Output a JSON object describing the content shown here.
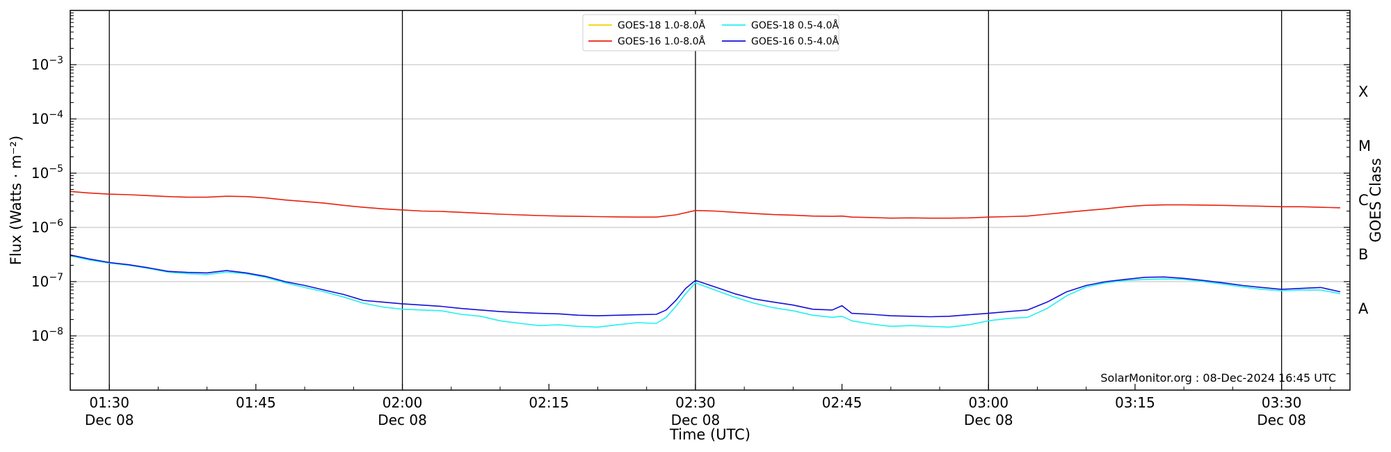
{
  "chart_data": {
    "type": "line",
    "title": "",
    "xlabel": "Time (UTC)",
    "ylabel": "Flux (Watts · m⁻²)",
    "right_label": "GOES Class",
    "yscale": "log",
    "ylim": [
      1e-09,
      0.01
    ],
    "xlim": [
      "01:26",
      "03:37"
    ],
    "grid": "horizontal",
    "legend_position": "top-center",
    "credit": "SolarMonitor.org : 08-Dec-2024 16:45 UTC",
    "x_ticks": [
      {
        "time": "01:30",
        "label": "01:30",
        "date": "Dec 08",
        "vline": true
      },
      {
        "time": "01:45",
        "label": "01:45",
        "date": "",
        "vline": false
      },
      {
        "time": "02:00",
        "label": "02:00",
        "date": "Dec 08",
        "vline": true
      },
      {
        "time": "02:15",
        "label": "02:15",
        "date": "",
        "vline": false
      },
      {
        "time": "02:30",
        "label": "02:30",
        "date": "Dec 08",
        "vline": true
      },
      {
        "time": "02:45",
        "label": "02:45",
        "date": "",
        "vline": false
      },
      {
        "time": "03:00",
        "label": "03:00",
        "date": "Dec 08",
        "vline": true
      },
      {
        "time": "03:15",
        "label": "03:15",
        "date": "",
        "vline": false
      },
      {
        "time": "03:30",
        "label": "03:30",
        "date": "Dec 08",
        "vline": true
      }
    ],
    "y_ticks": [
      {
        "value": 1e-08,
        "base": "10",
        "exp": "−8"
      },
      {
        "value": 1e-07,
        "base": "10",
        "exp": "−7"
      },
      {
        "value": 1e-06,
        "base": "10",
        "exp": "−6"
      },
      {
        "value": 1e-05,
        "base": "10",
        "exp": "−5"
      },
      {
        "value": 0.0001,
        "base": "10",
        "exp": "−4"
      },
      {
        "value": 0.001,
        "base": "10",
        "exp": "−3"
      }
    ],
    "goes_classes": [
      {
        "label": "A",
        "value": 3.16e-08
      },
      {
        "label": "B",
        "value": 3.16e-07
      },
      {
        "label": "C",
        "value": 3.16e-06
      },
      {
        "label": "M",
        "value": 3.16e-05
      },
      {
        "label": "X",
        "value": 0.000316
      }
    ],
    "series": [
      {
        "name": "GOES-18 1.0-8.0Å",
        "color": "#f2d300",
        "points": []
      },
      {
        "name": "GOES-16 1.0-8.0Å",
        "color": "#e8220c",
        "points": [
          [
            "01:26",
            4.6e-06
          ],
          [
            "01:28",
            4.3e-06
          ],
          [
            "01:30",
            4.1e-06
          ],
          [
            "01:32",
            4e-06
          ],
          [
            "01:34",
            3.85e-06
          ],
          [
            "01:36",
            3.7e-06
          ],
          [
            "01:38",
            3.6e-06
          ],
          [
            "01:40",
            3.6e-06
          ],
          [
            "01:42",
            3.75e-06
          ],
          [
            "01:44",
            3.7e-06
          ],
          [
            "01:46",
            3.5e-06
          ],
          [
            "01:48",
            3.2e-06
          ],
          [
            "01:50",
            3e-06
          ],
          [
            "01:52",
            2.8e-06
          ],
          [
            "01:54",
            2.55e-06
          ],
          [
            "01:56",
            2.35e-06
          ],
          [
            "01:58",
            2.2e-06
          ],
          [
            "02:00",
            2.1e-06
          ],
          [
            "02:02",
            2e-06
          ],
          [
            "02:04",
            1.97e-06
          ],
          [
            "02:06",
            1.9e-06
          ],
          [
            "02:08",
            1.82e-06
          ],
          [
            "02:10",
            1.75e-06
          ],
          [
            "02:12",
            1.7e-06
          ],
          [
            "02:14",
            1.65e-06
          ],
          [
            "02:16",
            1.62e-06
          ],
          [
            "02:18",
            1.6e-06
          ],
          [
            "02:20",
            1.58e-06
          ],
          [
            "02:22",
            1.56e-06
          ],
          [
            "02:24",
            1.55e-06
          ],
          [
            "02:26",
            1.55e-06
          ],
          [
            "02:28",
            1.7e-06
          ],
          [
            "02:30",
            2.05e-06
          ],
          [
            "02:32",
            2e-06
          ],
          [
            "02:34",
            1.9e-06
          ],
          [
            "02:36",
            1.8e-06
          ],
          [
            "02:38",
            1.72e-06
          ],
          [
            "02:40",
            1.68e-06
          ],
          [
            "02:42",
            1.62e-06
          ],
          [
            "02:44",
            1.6e-06
          ],
          [
            "02:45",
            1.62e-06
          ],
          [
            "02:46",
            1.55e-06
          ],
          [
            "02:48",
            1.52e-06
          ],
          [
            "02:50",
            1.48e-06
          ],
          [
            "02:52",
            1.5e-06
          ],
          [
            "02:54",
            1.48e-06
          ],
          [
            "02:56",
            1.48e-06
          ],
          [
            "02:58",
            1.5e-06
          ],
          [
            "03:00",
            1.55e-06
          ],
          [
            "03:02",
            1.58e-06
          ],
          [
            "03:04",
            1.62e-06
          ],
          [
            "03:06",
            1.75e-06
          ],
          [
            "03:08",
            1.9e-06
          ],
          [
            "03:10",
            2.05e-06
          ],
          [
            "03:12",
            2.2e-06
          ],
          [
            "03:14",
            2.4e-06
          ],
          [
            "03:16",
            2.55e-06
          ],
          [
            "03:18",
            2.6e-06
          ],
          [
            "03:20",
            2.6e-06
          ],
          [
            "03:22",
            2.58e-06
          ],
          [
            "03:24",
            2.55e-06
          ],
          [
            "03:26",
            2.5e-06
          ],
          [
            "03:28",
            2.45e-06
          ],
          [
            "03:30",
            2.4e-06
          ],
          [
            "03:32",
            2.4e-06
          ],
          [
            "03:34",
            2.35e-06
          ],
          [
            "03:36",
            2.3e-06
          ]
        ]
      },
      {
        "name": "GOES-18 0.5-4.0Å",
        "color": "#22f0f0",
        "points": [
          [
            "01:26",
            3e-07
          ],
          [
            "01:28",
            2.5e-07
          ],
          [
            "01:30",
            2.2e-07
          ],
          [
            "01:32",
            2e-07
          ],
          [
            "01:34",
            1.75e-07
          ],
          [
            "01:36",
            1.5e-07
          ],
          [
            "01:38",
            1.4e-07
          ],
          [
            "01:40",
            1.35e-07
          ],
          [
            "01:42",
            1.5e-07
          ],
          [
            "01:44",
            1.4e-07
          ],
          [
            "01:46",
            1.2e-07
          ],
          [
            "01:48",
            9.5e-08
          ],
          [
            "01:50",
            7.8e-08
          ],
          [
            "01:52",
            6.5e-08
          ],
          [
            "01:54",
            5.2e-08
          ],
          [
            "01:56",
            4e-08
          ],
          [
            "01:58",
            3.4e-08
          ],
          [
            "02:00",
            3.1e-08
          ],
          [
            "02:02",
            3e-08
          ],
          [
            "02:04",
            2.9e-08
          ],
          [
            "02:06",
            2.5e-08
          ],
          [
            "02:08",
            2.3e-08
          ],
          [
            "02:10",
            1.9e-08
          ],
          [
            "02:12",
            1.7e-08
          ],
          [
            "02:14",
            1.55e-08
          ],
          [
            "02:16",
            1.6e-08
          ],
          [
            "02:18",
            1.5e-08
          ],
          [
            "02:20",
            1.45e-08
          ],
          [
            "02:22",
            1.6e-08
          ],
          [
            "02:24",
            1.75e-08
          ],
          [
            "02:26",
            1.7e-08
          ],
          [
            "02:27",
            2.2e-08
          ],
          [
            "02:28",
            3.5e-08
          ],
          [
            "02:29",
            6e-08
          ],
          [
            "02:30",
            9.5e-08
          ],
          [
            "02:32",
            7e-08
          ],
          [
            "02:34",
            5.2e-08
          ],
          [
            "02:36",
            4e-08
          ],
          [
            "02:38",
            3.3e-08
          ],
          [
            "02:40",
            2.9e-08
          ],
          [
            "02:42",
            2.4e-08
          ],
          [
            "02:44",
            2.2e-08
          ],
          [
            "02:45",
            2.3e-08
          ],
          [
            "02:46",
            1.9e-08
          ],
          [
            "02:48",
            1.65e-08
          ],
          [
            "02:50",
            1.5e-08
          ],
          [
            "02:52",
            1.55e-08
          ],
          [
            "02:54",
            1.5e-08
          ],
          [
            "02:56",
            1.45e-08
          ],
          [
            "02:58",
            1.6e-08
          ],
          [
            "03:00",
            1.9e-08
          ],
          [
            "03:02",
            2.1e-08
          ],
          [
            "03:04",
            2.2e-08
          ],
          [
            "03:06",
            3.2e-08
          ],
          [
            "03:08",
            5.5e-08
          ],
          [
            "03:10",
            8e-08
          ],
          [
            "03:12",
            9.5e-08
          ],
          [
            "03:14",
            1.05e-07
          ],
          [
            "03:16",
            1.1e-07
          ],
          [
            "03:18",
            1.12e-07
          ],
          [
            "03:20",
            1.1e-07
          ],
          [
            "03:22",
            1e-07
          ],
          [
            "03:24",
            9e-08
          ],
          [
            "03:26",
            8e-08
          ],
          [
            "03:28",
            7.2e-08
          ],
          [
            "03:30",
            6.8e-08
          ],
          [
            "03:32",
            7e-08
          ],
          [
            "03:34",
            7e-08
          ],
          [
            "03:36",
            6e-08
          ]
        ]
      },
      {
        "name": "GOES-16 0.5-4.0Å",
        "color": "#1410d8",
        "points": [
          [
            "01:26",
            3.1e-07
          ],
          [
            "01:28",
            2.6e-07
          ],
          [
            "01:30",
            2.25e-07
          ],
          [
            "01:32",
            2.05e-07
          ],
          [
            "01:34",
            1.8e-07
          ],
          [
            "01:36",
            1.55e-07
          ],
          [
            "01:38",
            1.48e-07
          ],
          [
            "01:40",
            1.45e-07
          ],
          [
            "01:42",
            1.6e-07
          ],
          [
            "01:44",
            1.45e-07
          ],
          [
            "01:46",
            1.25e-07
          ],
          [
            "01:48",
            1e-07
          ],
          [
            "01:50",
            8.5e-08
          ],
          [
            "01:52",
            7e-08
          ],
          [
            "01:54",
            5.8e-08
          ],
          [
            "01:56",
            4.5e-08
          ],
          [
            "01:58",
            4.2e-08
          ],
          [
            "02:00",
            3.9e-08
          ],
          [
            "02:02",
            3.7e-08
          ],
          [
            "02:04",
            3.5e-08
          ],
          [
            "02:06",
            3.2e-08
          ],
          [
            "02:08",
            3e-08
          ],
          [
            "02:10",
            2.8e-08
          ],
          [
            "02:12",
            2.7e-08
          ],
          [
            "02:14",
            2.6e-08
          ],
          [
            "02:16",
            2.55e-08
          ],
          [
            "02:18",
            2.4e-08
          ],
          [
            "02:20",
            2.35e-08
          ],
          [
            "02:22",
            2.4e-08
          ],
          [
            "02:24",
            2.45e-08
          ],
          [
            "02:26",
            2.5e-08
          ],
          [
            "02:27",
            3e-08
          ],
          [
            "02:28",
            4.5e-08
          ],
          [
            "02:29",
            7.5e-08
          ],
          [
            "02:30",
            1.05e-07
          ],
          [
            "02:32",
            8e-08
          ],
          [
            "02:34",
            6e-08
          ],
          [
            "02:36",
            4.8e-08
          ],
          [
            "02:38",
            4.2e-08
          ],
          [
            "02:40",
            3.7e-08
          ],
          [
            "02:42",
            3.1e-08
          ],
          [
            "02:44",
            3e-08
          ],
          [
            "02:45",
            3.6e-08
          ],
          [
            "02:46",
            2.6e-08
          ],
          [
            "02:48",
            2.5e-08
          ],
          [
            "02:50",
            2.35e-08
          ],
          [
            "02:52",
            2.3e-08
          ],
          [
            "02:54",
            2.25e-08
          ],
          [
            "02:56",
            2.3e-08
          ],
          [
            "02:58",
            2.45e-08
          ],
          [
            "03:00",
            2.6e-08
          ],
          [
            "03:02",
            2.8e-08
          ],
          [
            "03:04",
            3e-08
          ],
          [
            "03:06",
            4.2e-08
          ],
          [
            "03:08",
            6.5e-08
          ],
          [
            "03:10",
            8.5e-08
          ],
          [
            "03:12",
            1e-07
          ],
          [
            "03:14",
            1.1e-07
          ],
          [
            "03:16",
            1.2e-07
          ],
          [
            "03:18",
            1.22e-07
          ],
          [
            "03:20",
            1.15e-07
          ],
          [
            "03:22",
            1.05e-07
          ],
          [
            "03:24",
            9.5e-08
          ],
          [
            "03:26",
            8.5e-08
          ],
          [
            "03:28",
            7.8e-08
          ],
          [
            "03:30",
            7.2e-08
          ],
          [
            "03:32",
            7.5e-08
          ],
          [
            "03:34",
            7.8e-08
          ],
          [
            "03:36",
            6.5e-08
          ]
        ]
      }
    ]
  }
}
